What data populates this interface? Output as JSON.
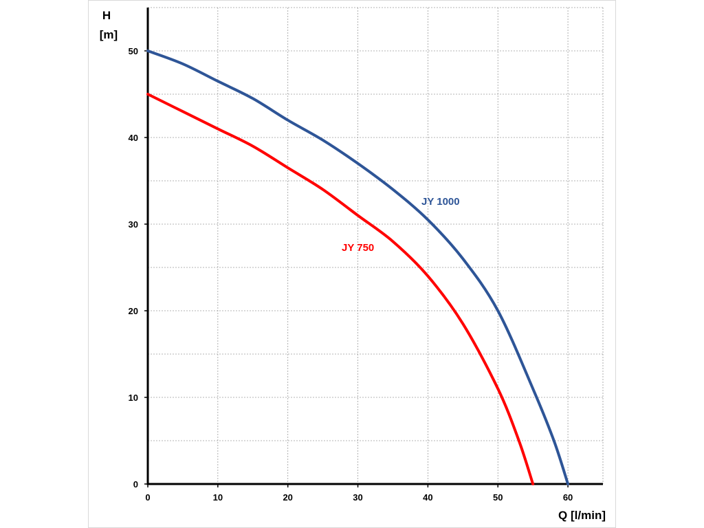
{
  "chart_data": {
    "type": "line",
    "title": "",
    "xlabel": "Q [l/min]",
    "ylabel_line1": "H",
    "ylabel_line2": "[m]",
    "xlim": [
      0,
      65
    ],
    "ylim": [
      0,
      55
    ],
    "x_ticks": [
      0,
      10,
      20,
      30,
      40,
      50,
      60
    ],
    "y_ticks": [
      0,
      10,
      20,
      30,
      40,
      50
    ],
    "x_grid_step": 10,
    "y_grid_step": 5,
    "grid": true,
    "series": [
      {
        "name": "JY 1000",
        "color": "#2e5597",
        "x": [
          0,
          5,
          10,
          15,
          20,
          25,
          30,
          35,
          40,
          45,
          50,
          55,
          58,
          60
        ],
        "y": [
          50,
          48.5,
          46.5,
          44.5,
          42,
          39.7,
          37,
          34,
          30.5,
          26,
          20,
          11,
          5,
          0
        ]
      },
      {
        "name": "JY 750",
        "color": "#ff0000",
        "x": [
          0,
          5,
          10,
          15,
          20,
          25,
          30,
          35,
          40,
          45,
          50,
          53,
          55
        ],
        "y": [
          45,
          43,
          41,
          39,
          36.5,
          34,
          31,
          28,
          24,
          18.5,
          11,
          5,
          0
        ]
      }
    ]
  }
}
